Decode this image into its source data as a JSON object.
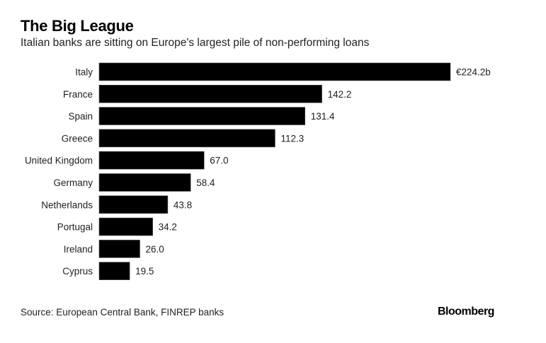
{
  "chart_data": {
    "type": "bar",
    "orientation": "horizontal",
    "title": "The Big League",
    "subtitle": "Italian banks are sitting on Europe's largest pile of non-performing loans",
    "categories": [
      "Italy",
      "France",
      "Spain",
      "Greece",
      "United Kingdom",
      "Germany",
      "Netherlands",
      "Portugal",
      "Ireland",
      "Cyprus"
    ],
    "values": [
      224.2,
      142.2,
      131.4,
      112.3,
      67.0,
      58.4,
      43.8,
      34.2,
      26.0,
      19.5
    ],
    "data_labels": [
      "€224.2b",
      "142.2",
      "131.4",
      "112.3",
      "67.0",
      "58.4",
      "43.8",
      "34.2",
      "26.0",
      "19.5"
    ],
    "unit": "€ billions",
    "xlim": [
      0,
      224.2
    ],
    "grid": false,
    "bar_color": "#000000"
  },
  "footer": {
    "source": "Source: European Central Bank, FINREP banks",
    "logo": "Bloomberg"
  }
}
